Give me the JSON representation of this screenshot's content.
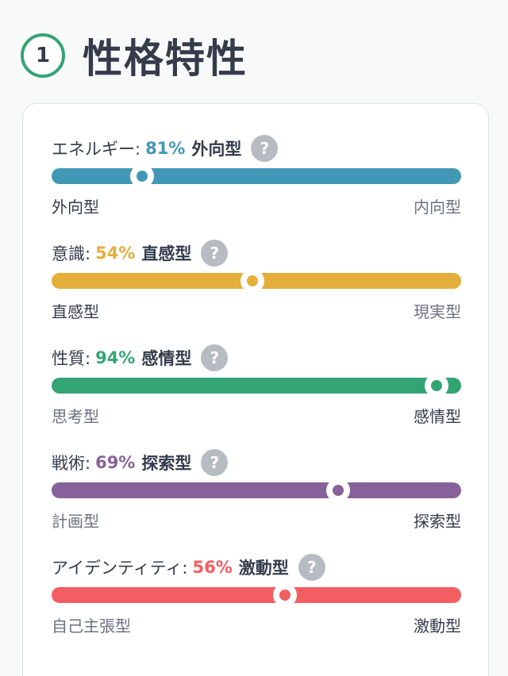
{
  "section": {
    "number": "1",
    "title": "性格特性"
  },
  "traits": [
    {
      "name": "エネルギー:",
      "pct": "81%",
      "type": "外向型",
      "left": "外向型",
      "right": "内向型",
      "color": "#4298b4",
      "position_fraction": 0.22,
      "dominant": "left"
    },
    {
      "name": "意識:",
      "pct": "54%",
      "type": "直感型",
      "left": "直感型",
      "right": "現実型",
      "color": "#e4ae3a",
      "position_fraction": 0.49,
      "dominant": "left"
    },
    {
      "name": "性質:",
      "pct": "94%",
      "type": "感情型",
      "left": "思考型",
      "right": "感情型",
      "color": "#33a474",
      "position_fraction": 0.94,
      "dominant": "right"
    },
    {
      "name": "戦術:",
      "pct": "69%",
      "type": "探索型",
      "left": "計画型",
      "right": "探索型",
      "color": "#88619a",
      "position_fraction": 0.7,
      "dominant": "right"
    },
    {
      "name": "アイデンティティ:",
      "pct": "56%",
      "type": "激動型",
      "left": "自己主張型",
      "right": "激動型",
      "color": "#f25e62",
      "position_fraction": 0.57,
      "dominant": "right"
    }
  ],
  "icons": {
    "help": "question-icon",
    "help_glyph": "?"
  }
}
